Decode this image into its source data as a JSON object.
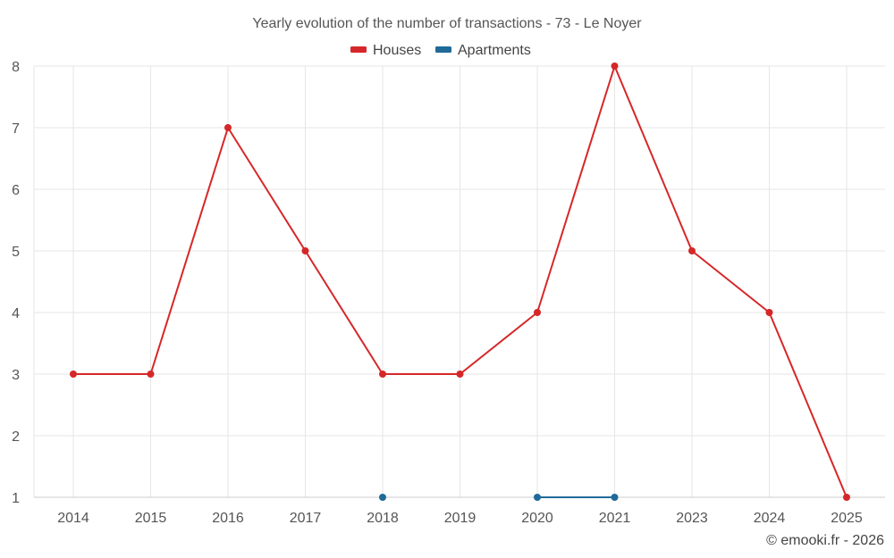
{
  "chart_data": {
    "type": "line",
    "title": "Yearly evolution of the number of transactions - 73 - Le Noyer",
    "categories": [
      "2014",
      "2015",
      "2016",
      "2017",
      "2018",
      "2019",
      "2020",
      "2021",
      "2023",
      "2024",
      "2025"
    ],
    "series": [
      {
        "name": "Houses",
        "color": "#d62728",
        "values": [
          3,
          3,
          7,
          5,
          3,
          3,
          4,
          8,
          5,
          4,
          1
        ]
      },
      {
        "name": "Apartments",
        "color": "#1f6a99",
        "values": [
          null,
          null,
          null,
          null,
          1,
          null,
          1,
          1,
          null,
          null,
          null
        ]
      }
    ],
    "yticks": [
      "1",
      "2",
      "3",
      "4",
      "5",
      "6",
      "7",
      "8"
    ],
    "ylim": [
      1,
      8
    ],
    "grid": true,
    "legend_position": "top-center",
    "credit": "© emooki.fr - 2026"
  }
}
